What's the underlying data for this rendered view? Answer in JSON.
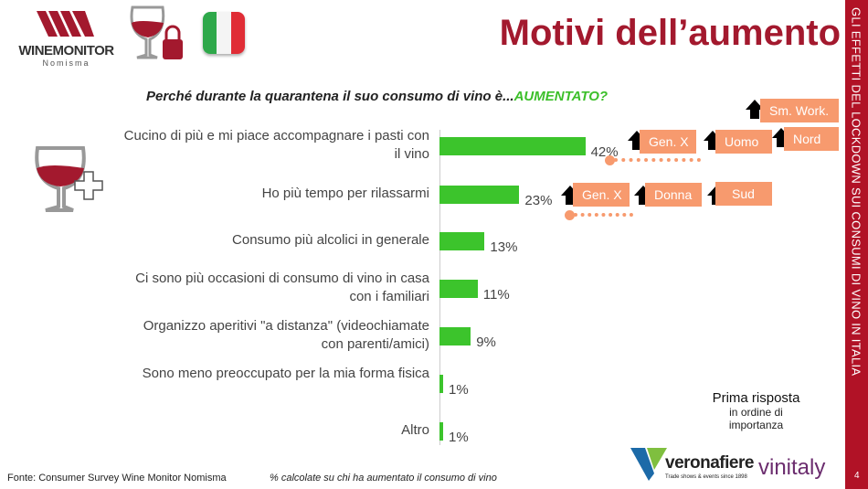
{
  "header": {
    "title": "Motivi dell’aumento",
    "logo_text": "WINEMONITOR",
    "logo_sub": "Nomisma"
  },
  "side_band": {
    "text": "GLI EFFETTI DEL LOCKDOWN SUI CONSUMI DI VINO IN ITALIA",
    "page": "4"
  },
  "chart_data": {
    "type": "bar",
    "orientation": "horizontal",
    "title": "Perché durante la quarantena il suo consumo di vino è...",
    "title_highlight": "AUMENTATO?",
    "categories": [
      "Cucino di più e mi piace accompagnare i pasti con il vino",
      "Ho più tempo per rilassarmi",
      "Consumo più alcolici in generale",
      "Ci sono più occasioni di consumo di vino in casa con i familiari",
      "Organizzo aperitivi \"a distanza\" (videochiamate con parenti/amici)",
      "Sono meno preoccupato per la mia forma fisica",
      "Altro"
    ],
    "values": [
      42,
      23,
      13,
      11,
      9,
      1,
      1
    ],
    "value_labels": [
      "42%",
      "23%",
      "13%",
      "11%",
      "9%",
      "1%",
      "1%"
    ],
    "unit": "%",
    "color": "#3cc42c"
  },
  "annotations": {
    "row1": [
      "Gen. X",
      "Uomo",
      "Nord",
      "Sm. Work."
    ],
    "row2": [
      "Gen. X",
      "Donna",
      "Sud"
    ]
  },
  "legend": {
    "title": "Prima risposta",
    "sub": "in ordine di importanza"
  },
  "footer": {
    "source": "Fonte: Consumer Survey Wine Monitor Nomisma",
    "note": "% calcolate su chi ha aumentato il consumo di vino"
  },
  "brands": {
    "verona": "veronafiere",
    "verona_sub": "Trade shows & events since 1898",
    "vinitaly": "vinitaly"
  }
}
